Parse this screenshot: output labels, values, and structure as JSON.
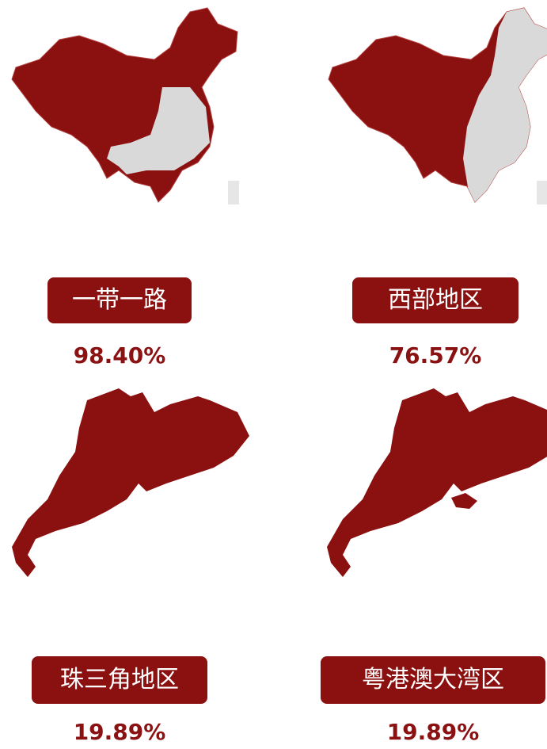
{
  "panels": [
    {
      "label": "一带一路",
      "value": "98.40%"
    },
    {
      "label": "西部地区",
      "value": "76.57%"
    },
    {
      "label": "珠三角地区",
      "value": "19.89%"
    },
    {
      "label": "粤港澳大湾区",
      "value": "19.89%"
    }
  ]
}
